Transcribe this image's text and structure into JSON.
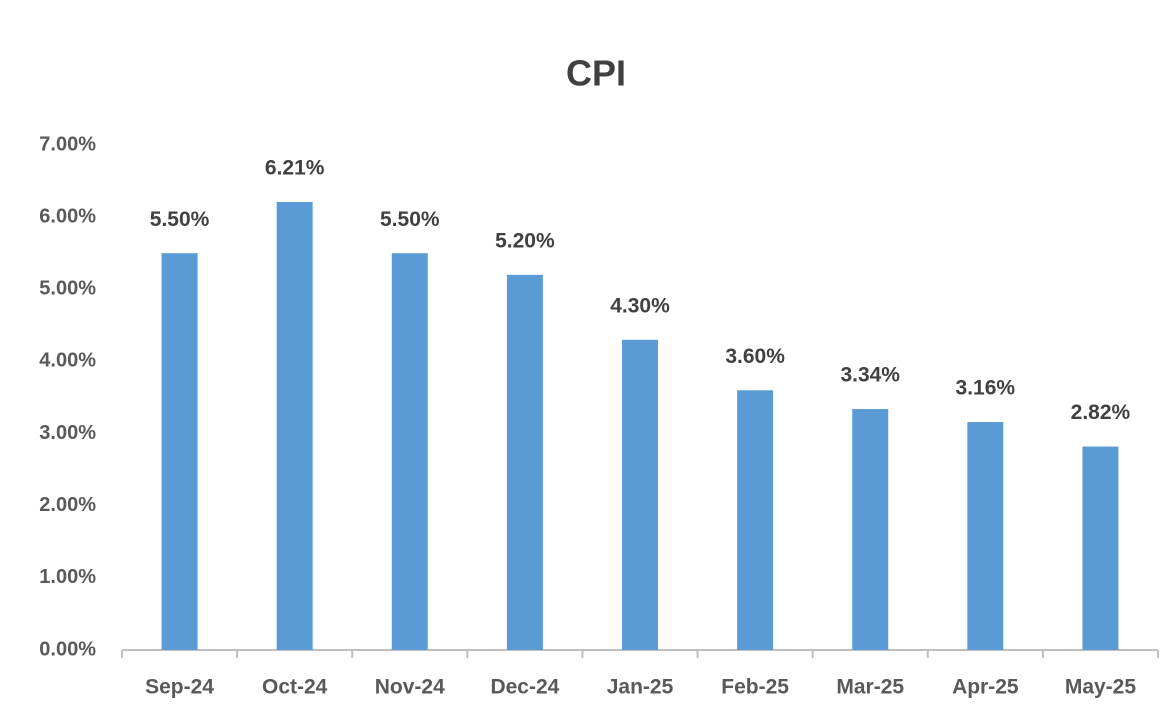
{
  "chart_data": {
    "type": "bar",
    "title": "CPI",
    "categories": [
      "Sep-24",
      "Oct-24",
      "Nov-24",
      "Dec-24",
      "Jan-25",
      "Feb-25",
      "Mar-25",
      "Apr-25",
      "May-25"
    ],
    "values": [
      5.5,
      6.21,
      5.5,
      5.2,
      4.3,
      3.6,
      3.34,
      3.16,
      2.82
    ],
    "value_labels": [
      "5.50%",
      "6.21%",
      "5.50%",
      "5.20%",
      "4.30%",
      "3.60%",
      "3.34%",
      "3.16%",
      "2.82%"
    ],
    "color": "#5b9bd5",
    "ylim": [
      0,
      7
    ],
    "yticks": [
      {
        "value": 0,
        "label": "0.00%"
      },
      {
        "value": 1,
        "label": "1.00%"
      },
      {
        "value": 2,
        "label": "2.00%"
      },
      {
        "value": 3,
        "label": "3.00%"
      },
      {
        "value": 4,
        "label": "4.00%"
      },
      {
        "value": 5,
        "label": "5.00%"
      },
      {
        "value": 6,
        "label": "6.00%"
      },
      {
        "value": 7,
        "label": "7.00%"
      }
    ],
    "grid": false
  }
}
